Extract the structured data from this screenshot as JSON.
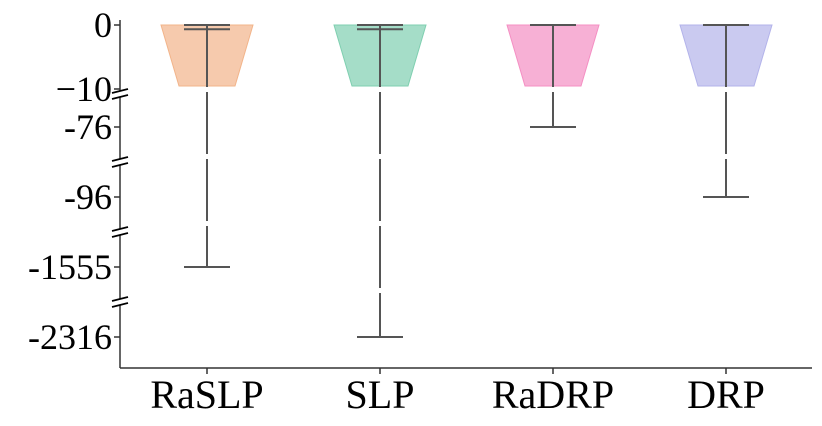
{
  "chart_data": {
    "type": "violin",
    "categories": [
      "RaSLP",
      "SLP",
      "RaDRP",
      "DRP"
    ],
    "y_ticks": [
      "0",
      "−10",
      "-76",
      "-96",
      "-1555",
      "-2316"
    ],
    "y_axis_broken": true,
    "series": [
      {
        "category": "RaSLP",
        "min": -1555,
        "max": 0,
        "median": -0.5,
        "color": "#f2b48a"
      },
      {
        "category": "SLP",
        "min": -2316,
        "max": 0,
        "median": -0.5,
        "color": "#7fcfb0"
      },
      {
        "category": "RaDRP",
        "min": -76,
        "max": 0,
        "median": 0,
        "color": "#f48fc3"
      },
      {
        "category": "DRP",
        "min": -96,
        "max": 0,
        "median": 0,
        "color": "#b3b3ea"
      }
    ],
    "whisker_color": "#555555",
    "xlabel": "",
    "ylabel": ""
  }
}
